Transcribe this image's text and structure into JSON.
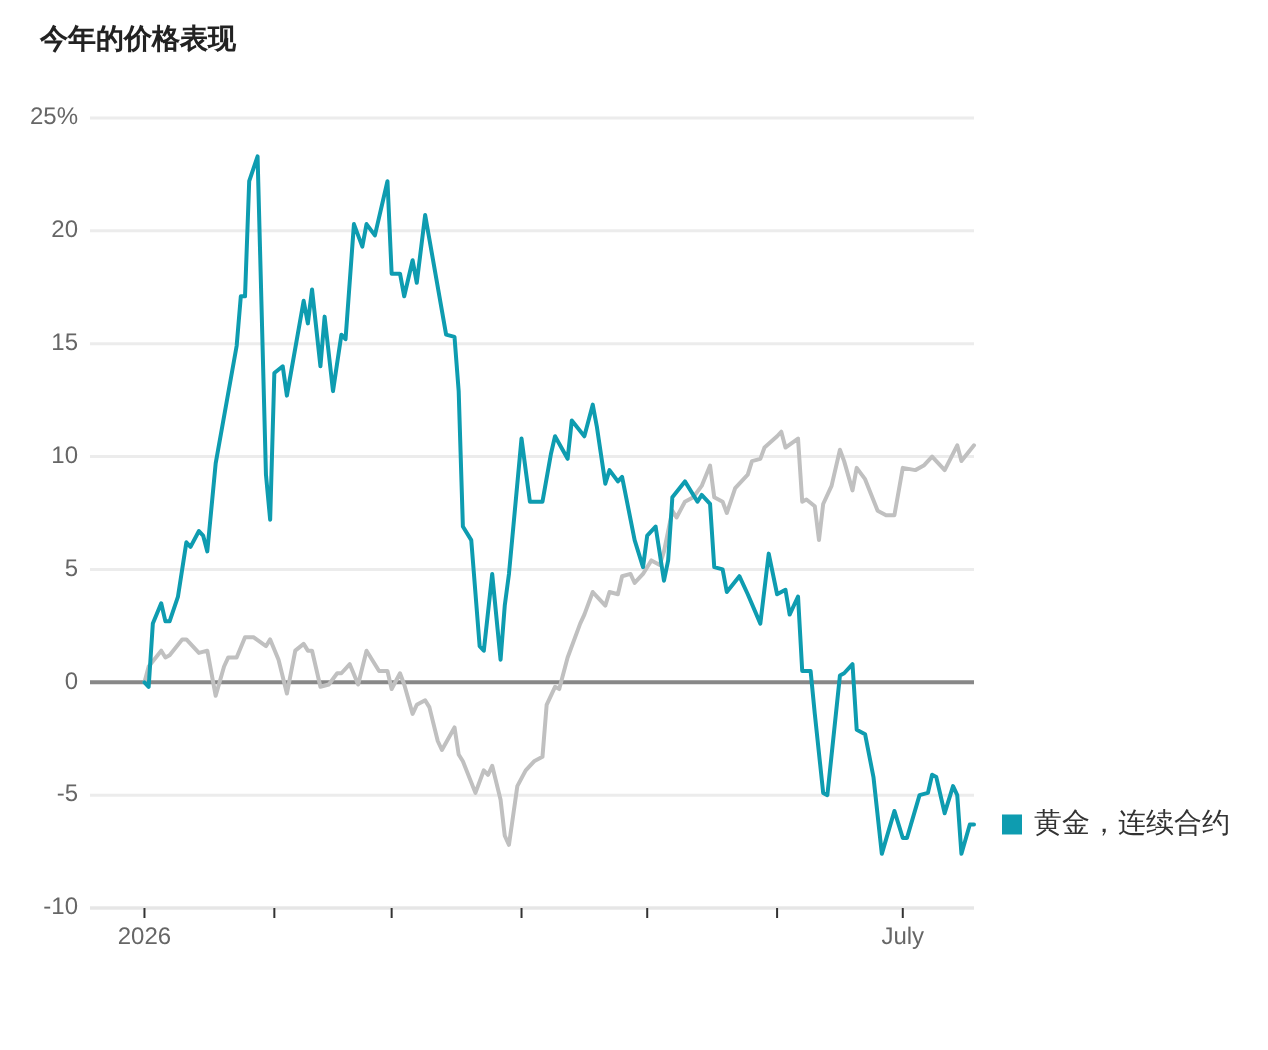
{
  "chart_data": {
    "type": "line",
    "title": "今年的价格表现",
    "xlim": [
      "2025-12-19",
      "2026-07-18"
    ],
    "ylim": [
      -10,
      25
    ],
    "xticks": [
      {
        "value": "2026-01-01",
        "label": "2026"
      },
      {
        "value": "2026-02-01",
        "label": null
      },
      {
        "value": "2026-03-01",
        "label": null
      },
      {
        "value": "2026-04-01",
        "label": null
      },
      {
        "value": "2026-05-01",
        "label": null
      },
      {
        "value": "2026-06-01",
        "label": null
      },
      {
        "value": "2026-07-01",
        "label": "July"
      }
    ],
    "yticks": [
      -10,
      -5,
      0,
      5,
      10,
      15,
      20,
      {
        "value": 25,
        "label": "25%"
      }
    ],
    "grid": "y",
    "ref_lines": [
      {
        "axis": "y",
        "value": 0,
        "color": "#888888"
      }
    ],
    "series": [
      {
        "color": "#c0c0c0",
        "x": [
          "2026-01-01",
          "2026-01-02",
          "2026-01-05",
          "2026-01-06",
          "2026-01-07",
          "2026-01-10",
          "2026-01-11",
          "2026-01-14",
          "2026-01-16",
          "2026-01-18",
          "2026-01-20",
          "2026-01-21",
          "2026-01-23",
          "2026-01-25",
          "2026-01-27",
          "2026-01-30",
          "2026-01-31",
          "2026-02-02",
          "2026-02-04",
          "2026-02-06",
          "2026-02-08",
          "2026-02-09",
          "2026-02-10",
          "2026-02-12",
          "2026-02-14",
          "2026-02-16",
          "2026-02-17",
          "2026-02-19",
          "2026-02-21",
          "2026-02-23",
          "2026-02-26",
          "2026-02-28",
          "2026-03-01",
          "2026-03-03",
          "2026-03-04",
          "2026-03-06",
          "2026-03-07",
          "2026-03-09",
          "2026-03-10",
          "2026-03-12",
          "2026-03-13",
          "2026-03-16",
          "2026-03-17",
          "2026-03-18",
          "2026-03-21",
          "2026-03-23",
          "2026-03-24",
          "2026-03-25",
          "2026-03-27",
          "2026-03-28",
          "2026-03-29",
          "2026-03-31",
          "2026-04-02",
          "2026-04-04",
          "2026-04-06",
          "2026-04-07",
          "2026-04-09",
          "2026-04-10",
          "2026-04-12",
          "2026-04-15",
          "2026-04-16",
          "2026-04-18",
          "2026-04-19",
          "2026-04-21",
          "2026-04-22",
          "2026-04-24",
          "2026-04-25",
          "2026-04-27",
          "2026-04-28",
          "2026-04-30",
          "2026-05-02",
          "2026-05-04",
          "2026-05-05",
          "2026-05-07",
          "2026-05-08",
          "2026-05-10",
          "2026-05-12",
          "2026-05-14",
          "2026-05-16",
          "2026-05-17",
          "2026-05-19",
          "2026-05-20",
          "2026-05-22",
          "2026-05-23",
          "2026-05-25",
          "2026-05-26",
          "2026-05-28",
          "2026-05-29",
          "2026-06-01",
          "2026-06-02",
          "2026-06-03",
          "2026-06-06",
          "2026-06-07",
          "2026-06-08",
          "2026-06-10",
          "2026-06-11",
          "2026-06-12",
          "2026-06-14",
          "2026-06-16",
          "2026-06-17",
          "2026-06-19",
          "2026-06-20",
          "2026-06-22",
          "2026-06-25",
          "2026-06-27",
          "2026-06-29",
          "2026-07-01",
          "2026-07-04",
          "2026-07-06",
          "2026-07-08",
          "2026-07-11",
          "2026-07-14",
          "2026-07-15",
          "2026-07-18"
        ],
        "values": [
          0,
          0.7,
          1.4,
          1.1,
          1.2,
          1.9,
          1.9,
          1.3,
          1.4,
          -0.6,
          0.7,
          1.1,
          1.1,
          2.0,
          2.0,
          1.6,
          1.9,
          1.0,
          -0.5,
          1.4,
          1.7,
          1.4,
          1.4,
          -0.2,
          -0.1,
          0.4,
          0.4,
          0.8,
          -0.1,
          1.4,
          0.5,
          0.5,
          -0.3,
          0.4,
          -0.1,
          -1.4,
          -1.0,
          -0.8,
          -1.1,
          -2.6,
          -3.0,
          -2.0,
          -3.2,
          -3.5,
          -4.9,
          -3.9,
          -4.1,
          -3.7,
          -5.2,
          -6.8,
          -7.2,
          -4.6,
          -3.9,
          -3.5,
          -3.3,
          -1.0,
          -0.2,
          -0.3,
          1.1,
          2.6,
          3.0,
          4.0,
          3.8,
          3.4,
          4.0,
          3.9,
          4.7,
          4.8,
          4.4,
          4.8,
          5.4,
          5.2,
          5.8,
          7.6,
          7.3,
          8.0,
          8.2,
          8.7,
          9.6,
          8.2,
          8.0,
          7.5,
          8.6,
          8.8,
          9.2,
          9.8,
          9.9,
          10.4,
          10.9,
          11.1,
          10.4,
          10.8,
          8.0,
          8.1,
          7.8,
          6.3,
          7.9,
          8.7,
          10.3,
          9.8,
          8.5,
          9.5,
          9.0,
          7.6,
          7.4,
          7.4,
          9.5,
          9.4,
          9.6,
          10.0,
          9.4,
          10.5,
          9.8,
          10.5
        ]
      },
      {
        "name": "黄金，连续合约",
        "color": "#0e9cb0",
        "x": [
          "2026-01-01",
          "2026-01-02",
          "2026-01-03",
          "2026-01-05",
          "2026-01-06",
          "2026-01-07",
          "2026-01-09",
          "2026-01-11",
          "2026-01-12",
          "2026-01-14",
          "2026-01-15",
          "2026-01-16",
          "2026-01-18",
          "2026-01-23",
          "2026-01-24",
          "2026-01-25",
          "2026-01-26",
          "2026-01-28",
          "2026-01-30",
          "2026-01-31",
          "2026-02-01",
          "2026-02-03",
          "2026-02-04",
          "2026-02-08",
          "2026-02-09",
          "2026-02-10",
          "2026-02-12",
          "2026-02-13",
          "2026-02-15",
          "2026-02-17",
          "2026-02-18",
          "2026-02-20",
          "2026-02-22",
          "2026-02-23",
          "2026-02-25",
          "2026-02-28",
          "2026-03-01",
          "2026-03-03",
          "2026-03-04",
          "2026-03-06",
          "2026-03-07",
          "2026-03-09",
          "2026-03-14",
          "2026-03-16",
          "2026-03-17",
          "2026-03-18",
          "2026-03-20",
          "2026-03-22",
          "2026-03-23",
          "2026-03-25",
          "2026-03-27",
          "2026-03-28",
          "2026-03-29",
          "2026-04-01",
          "2026-04-03",
          "2026-04-06",
          "2026-04-08",
          "2026-04-09",
          "2026-04-12",
          "2026-04-13",
          "2026-04-16",
          "2026-04-18",
          "2026-04-19",
          "2026-04-21",
          "2026-04-22",
          "2026-04-24",
          "2026-04-25",
          "2026-04-28",
          "2026-04-30",
          "2026-05-01",
          "2026-05-03",
          "2026-05-05",
          "2026-05-06",
          "2026-05-07",
          "2026-05-10",
          "2026-05-13",
          "2026-05-14",
          "2026-05-16",
          "2026-05-17",
          "2026-05-19",
          "2026-05-20",
          "2026-05-23",
          "2026-05-25",
          "2026-05-28",
          "2026-05-30",
          "2026-06-01",
          "2026-06-03",
          "2026-06-04",
          "2026-06-06",
          "2026-06-07",
          "2026-06-09",
          "2026-06-10",
          "2026-06-12",
          "2026-06-13",
          "2026-06-16",
          "2026-06-17",
          "2026-06-19",
          "2026-06-20",
          "2026-06-22",
          "2026-06-24",
          "2026-06-26",
          "2026-06-29",
          "2026-07-01",
          "2026-07-02",
          "2026-07-05",
          "2026-07-07",
          "2026-07-08",
          "2026-07-09",
          "2026-07-11",
          "2026-07-13",
          "2026-07-14",
          "2026-07-15",
          "2026-07-17",
          "2026-07-18"
        ],
        "values": [
          0,
          -0.2,
          2.6,
          3.5,
          2.7,
          2.7,
          3.8,
          6.2,
          6.0,
          6.7,
          6.5,
          5.8,
          9.7,
          14.9,
          17.1,
          17.1,
          22.2,
          23.3,
          9.2,
          7.2,
          13.7,
          14.0,
          12.7,
          16.9,
          15.9,
          17.4,
          14.0,
          16.2,
          12.9,
          15.4,
          15.2,
          20.3,
          19.3,
          20.3,
          19.8,
          22.2,
          18.1,
          18.1,
          17.1,
          18.7,
          17.7,
          20.7,
          15.4,
          15.3,
          12.9,
          6.9,
          6.3,
          1.6,
          1.4,
          4.8,
          1.0,
          3.4,
          4.8,
          10.8,
          8.0,
          8.0,
          10.1,
          10.9,
          9.9,
          11.6,
          10.9,
          12.3,
          11.3,
          8.8,
          9.4,
          8.9,
          9.1,
          6.3,
          5.1,
          6.5,
          6.9,
          4.5,
          5.4,
          8.2,
          8.9,
          8.0,
          8.3,
          7.9,
          5.1,
          5.0,
          4.0,
          4.7,
          3.9,
          2.6,
          5.7,
          3.9,
          4.1,
          3.0,
          3.8,
          0.5,
          0.5,
          -1.4,
          -4.9,
          -5.0,
          0.3,
          0.4,
          0.8,
          -2.1,
          -2.3,
          -4.2,
          -7.6,
          -5.7,
          -6.9,
          -6.9,
          -5.0,
          -4.9,
          -4.1,
          -4.2,
          -5.8,
          -4.6,
          -5.0,
          -7.6,
          -6.3,
          -6.3
        ]
      }
    ]
  }
}
